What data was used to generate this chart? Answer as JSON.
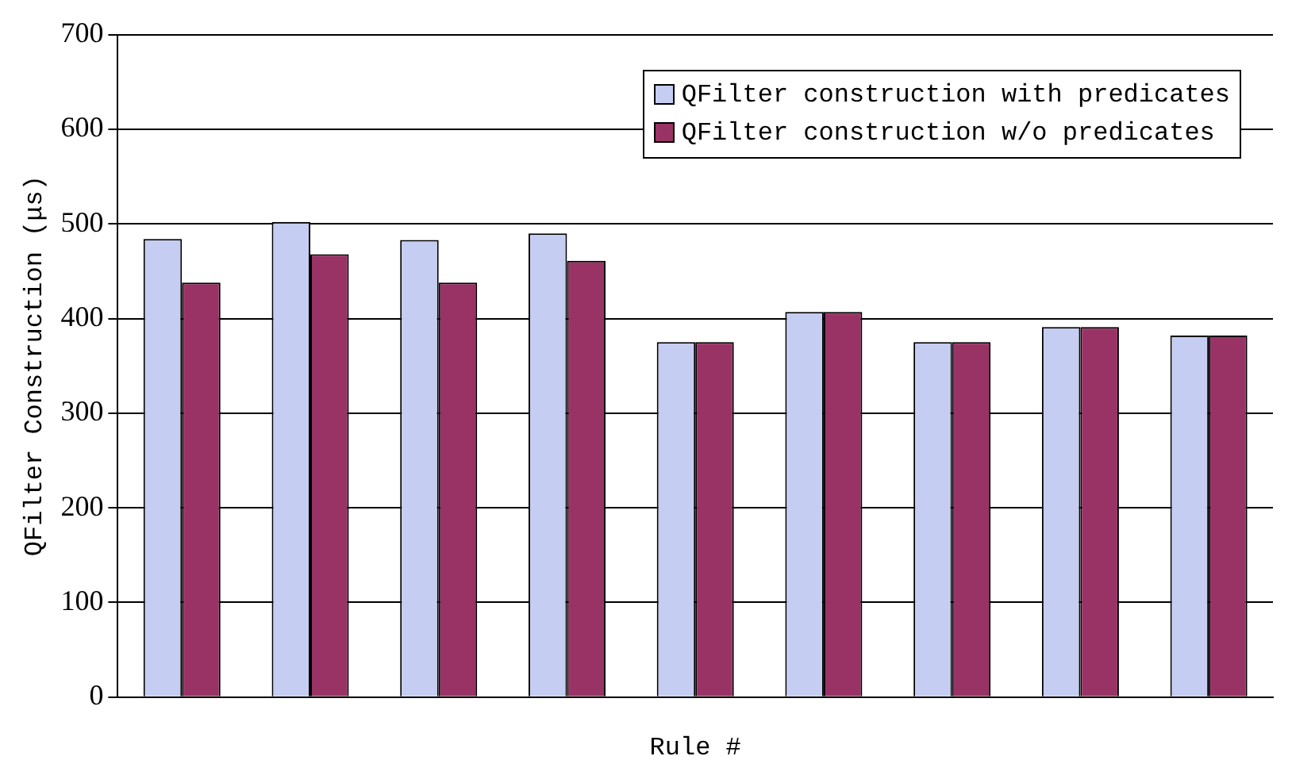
{
  "chart_data": {
    "type": "bar",
    "xlabel": "Rule #",
    "ylabel": "QFilter Construction (μs)",
    "categories": [
      null,
      null,
      null,
      null,
      null,
      null,
      null,
      null,
      null
    ],
    "series": [
      {
        "name": "QFilter construction with predicates",
        "color": "#c6cdf2",
        "values": [
          484,
          502,
          483,
          490,
          375,
          407,
          375,
          391,
          382
        ]
      },
      {
        "name": "QFilter construction w/o predicates",
        "color": "#993366",
        "values": [
          438,
          468,
          438,
          461,
          375,
          407,
          375,
          391,
          382
        ]
      }
    ],
    "ylim": [
      0,
      700
    ],
    "yticks": [
      0,
      100,
      200,
      300,
      400,
      500,
      600,
      700
    ],
    "grid": "y",
    "legend": "top right"
  }
}
